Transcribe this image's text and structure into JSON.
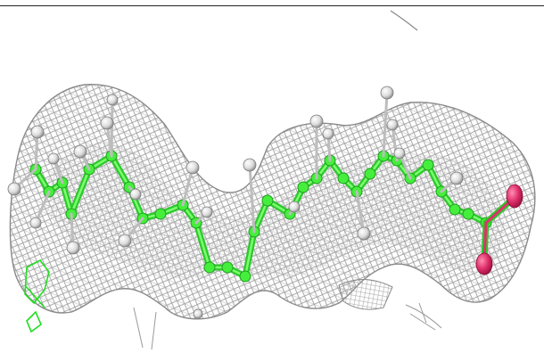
{
  "image": {
    "description_visible": false,
    "background": "#ffffff",
    "colors": {
      "mesh": "#9a9a9a",
      "carbon": "#3ee83a",
      "carbon_dark": "#1faa1f",
      "hydrogen": "#e6e6e6",
      "hydrogen_shade": "#8c8c8c",
      "oxygen": "#e0306a",
      "oxygen_shade": "#9a1040"
    }
  }
}
